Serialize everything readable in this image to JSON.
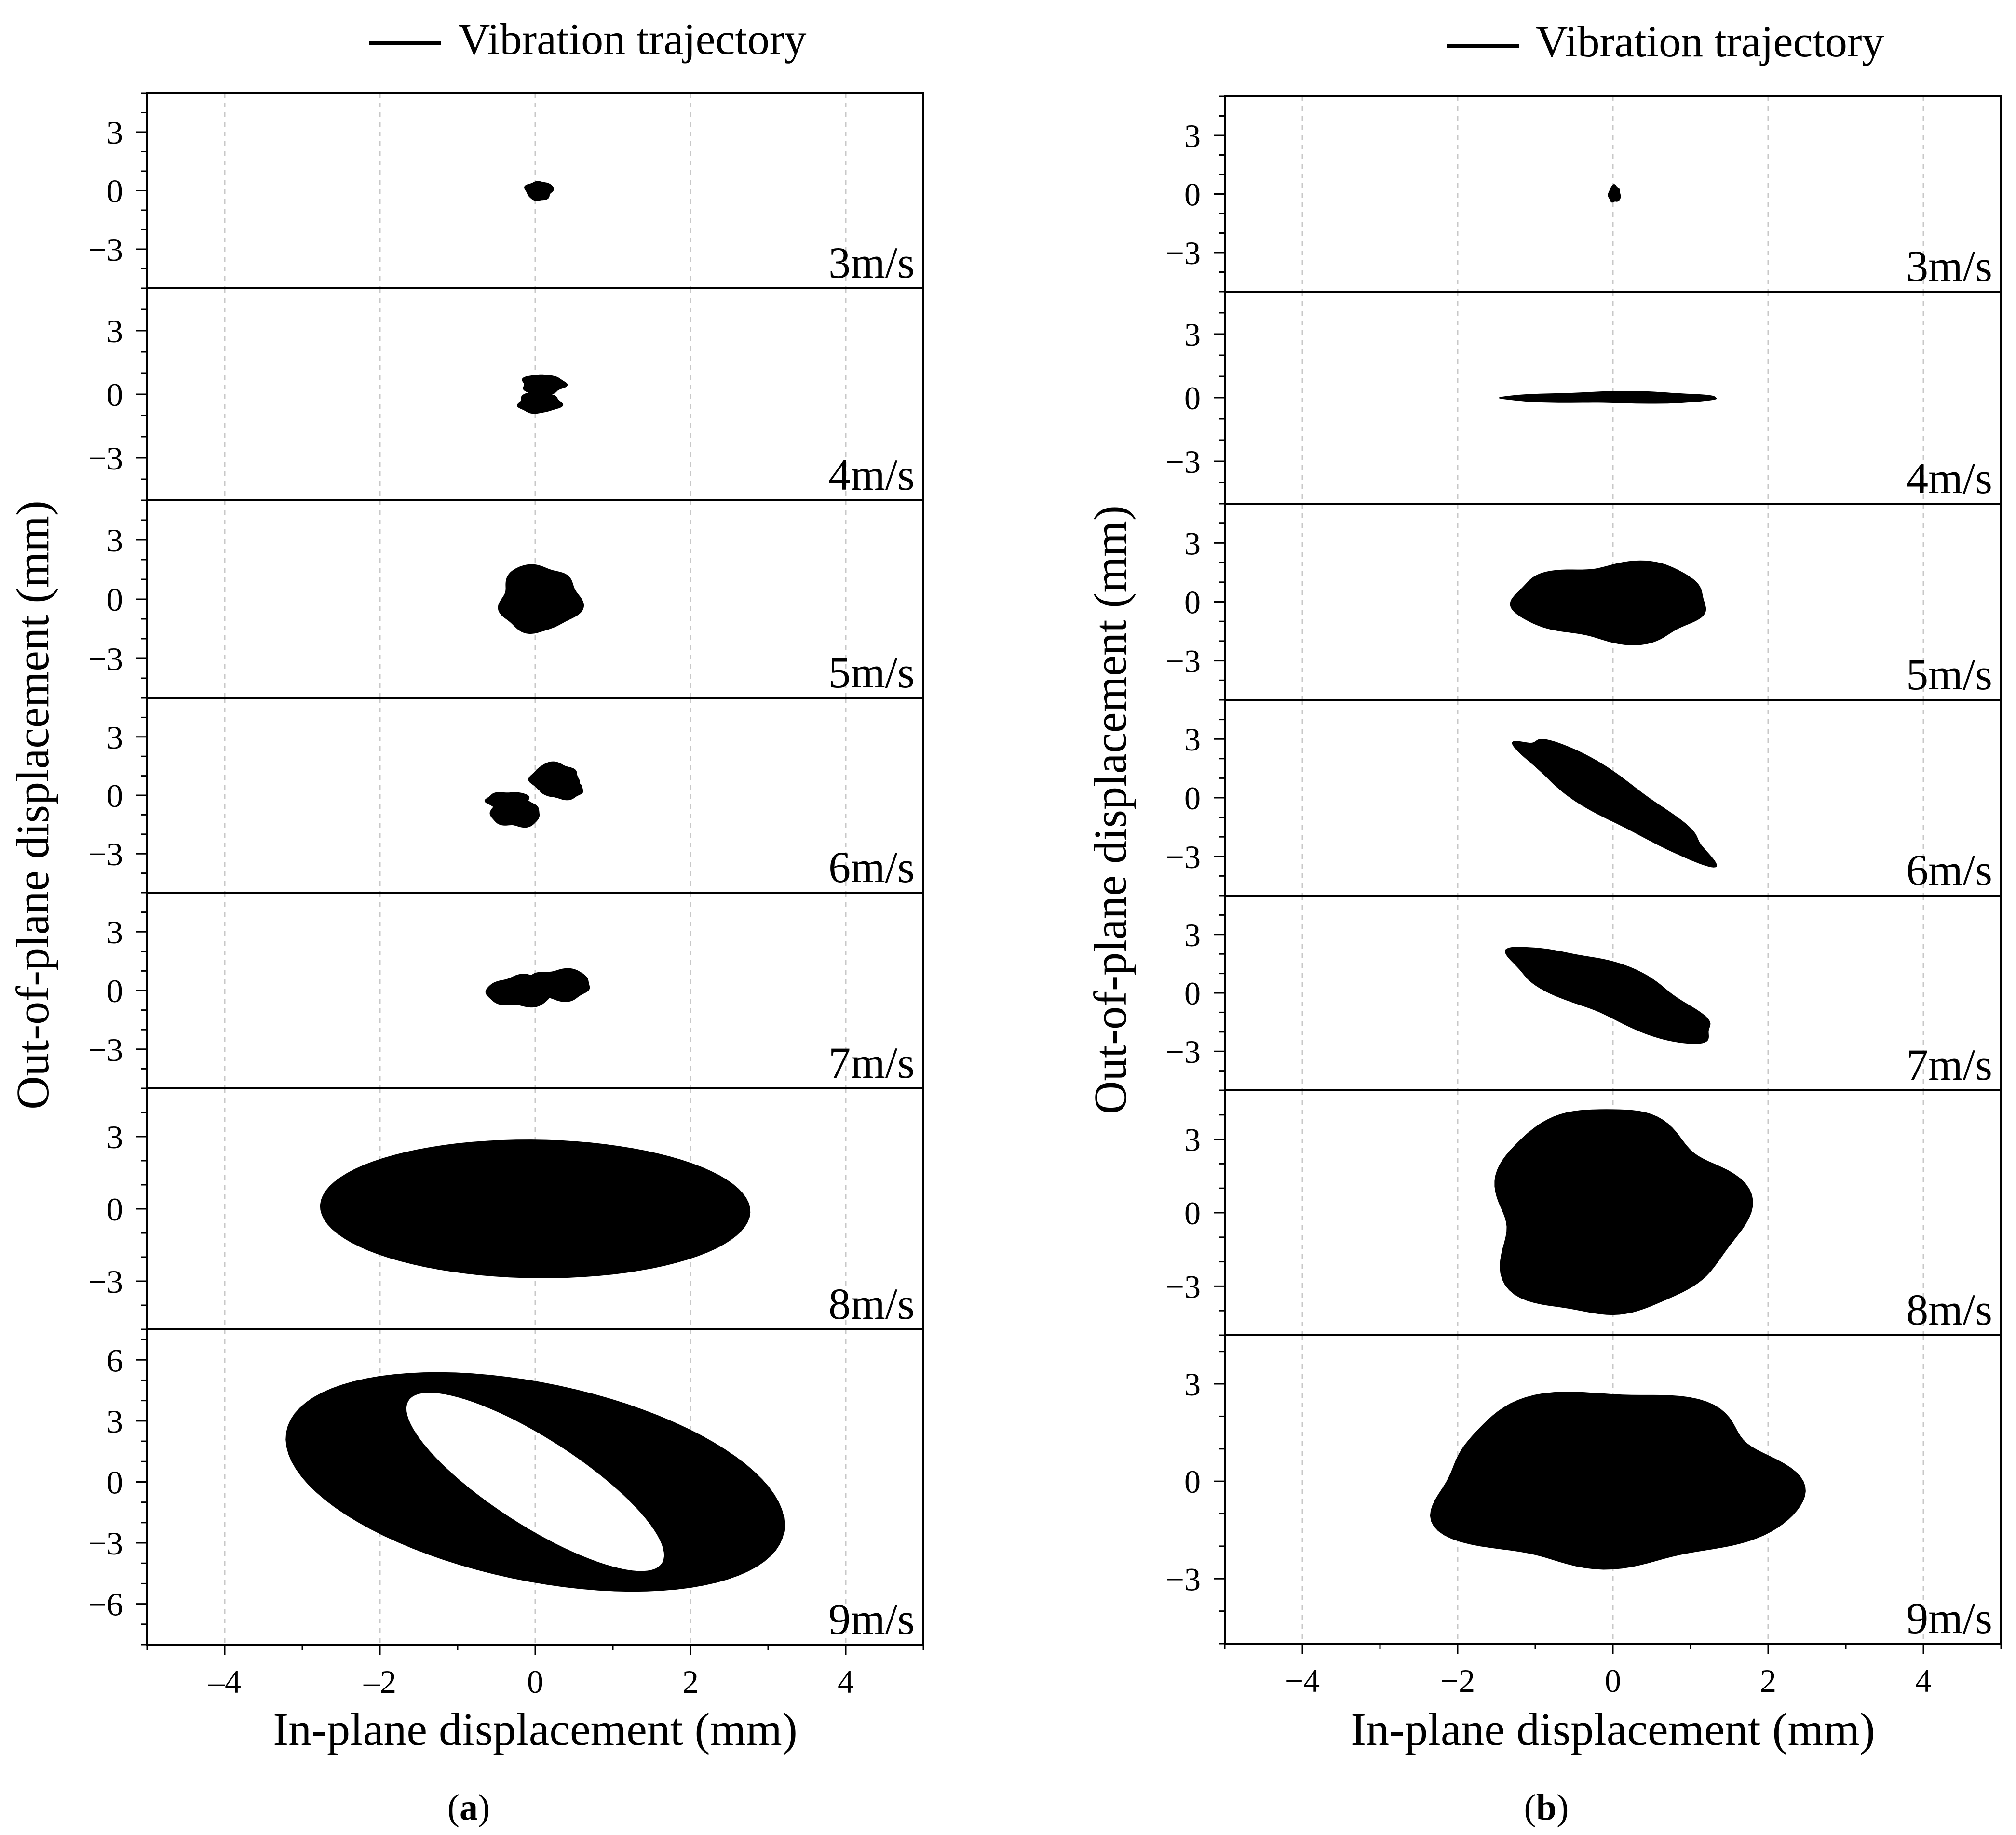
{
  "figure": {
    "legend_label": "Vibration trajectory",
    "xlabel": "In-plane displacement (mm)",
    "ylabel": "Out-of-plane displacement (mm)",
    "color_trajectory": "#000000",
    "color_grid": "#c8c8c8"
  },
  "chart_data": [
    {
      "type": "scatter",
      "panel_letter": "a",
      "title": "",
      "xlabel": "In-plane displacement (mm)",
      "ylabel": "Out-of-plane displacement (mm)",
      "xlim": [
        -5,
        5
      ],
      "xticks": [
        -4,
        -2,
        0,
        2,
        4
      ],
      "xtick_labels": [
        "–4",
        "–2",
        "0",
        "2",
        "4"
      ],
      "legend": [
        "Vibration trajectory"
      ],
      "grid": "vertical dashed at x ticks",
      "subplots": [
        {
          "label": "3m/s",
          "ylim": [
            -5,
            5
          ],
          "yticks": [
            -3,
            0,
            3
          ],
          "ytick_labels": [
            "−3",
            "0",
            "3"
          ],
          "shape": "blob",
          "trajectory": {
            "cx": 0.05,
            "cy": 0.0,
            "a": 0.18,
            "b": 0.5,
            "angle_deg": 0
          }
        },
        {
          "label": "4m/s",
          "ylim": [
            -5,
            5
          ],
          "yticks": [
            -3,
            0,
            3
          ],
          "ytick_labels": [
            "−3",
            "0",
            "3"
          ],
          "shape": "twin-lobe",
          "trajectory": {
            "lobes": [
              {
                "cx": 0.1,
                "cy": 0.45,
                "a": 0.28,
                "b": 0.5,
                "angle_deg": 0
              },
              {
                "cx": 0.05,
                "cy": -0.4,
                "a": 0.28,
                "b": 0.5,
                "angle_deg": 0
              }
            ]
          }
        },
        {
          "label": "5m/s",
          "ylim": [
            -5,
            5
          ],
          "yticks": [
            -3,
            0,
            3
          ],
          "ytick_labels": [
            "−3",
            "0",
            "3"
          ],
          "shape": "blob",
          "trajectory": {
            "cx": 0.05,
            "cy": 0.0,
            "a": 0.52,
            "b": 1.7,
            "angle_deg": 0
          }
        },
        {
          "label": "6m/s",
          "ylim": [
            -5,
            5
          ],
          "yticks": [
            -3,
            0,
            3
          ],
          "ytick_labels": [
            "−3",
            "0",
            "3"
          ],
          "shape": "twin-lobe",
          "trajectory": {
            "lobes": [
              {
                "cx": 0.25,
                "cy": 0.9,
                "a": 0.32,
                "b": 0.75,
                "angle_deg": 0
              },
              {
                "cx": -0.25,
                "cy": -0.9,
                "a": 0.32,
                "b": 0.75,
                "angle_deg": 0
              },
              {
                "cx": 0.35,
                "cy": 0.3,
                "a": 0.28,
                "b": 0.5,
                "angle_deg": 0
              },
              {
                "cx": -0.35,
                "cy": -0.3,
                "a": 0.28,
                "b": 0.5,
                "angle_deg": 0
              }
            ]
          }
        },
        {
          "label": "7m/s",
          "ylim": [
            -5,
            5
          ],
          "yticks": [
            -3,
            0,
            3
          ],
          "ytick_labels": [
            "−3",
            "0",
            "3"
          ],
          "shape": "twin-lobe",
          "trajectory": {
            "lobes": [
              {
                "cx": -0.2,
                "cy": -0.05,
                "a": 0.42,
                "b": 0.8,
                "angle_deg": 0
              },
              {
                "cx": 0.3,
                "cy": 0.3,
                "a": 0.42,
                "b": 0.8,
                "angle_deg": 0
              }
            ]
          }
        },
        {
          "label": "8m/s",
          "ylim": [
            -5,
            5
          ],
          "yticks": [
            -3,
            0,
            3
          ],
          "ytick_labels": [
            "−3",
            "0",
            "3"
          ],
          "shape": "ring",
          "trajectory": {
            "cx": 0.0,
            "cy": 0.0,
            "outer_a": 2.75,
            "outer_b": 2.9,
            "angle_deg": 22
          }
        },
        {
          "label": "9m/s",
          "ylim": [
            -8,
            7.5
          ],
          "yticks": [
            -6,
            -3,
            0,
            3,
            6
          ],
          "ytick_labels": [
            "−6",
            "−3",
            "0",
            "3",
            "6"
          ],
          "shape": "ring",
          "trajectory": {
            "cx": 0.0,
            "cy": 0.0,
            "outer_a": 2.85,
            "outer_b": 5.6,
            "inner_a": 0.9,
            "inner_b": 4.6,
            "angle_deg": 18
          }
        }
      ]
    },
    {
      "type": "scatter",
      "panel_letter": "b",
      "title": "",
      "xlabel": "In-plane displacement (mm)",
      "ylabel": "Out-of-plane displacement (mm)",
      "xlim": [
        -5,
        5
      ],
      "xticks": [
        -4,
        -2,
        0,
        2,
        4
      ],
      "xtick_labels": [
        "−4",
        "−2",
        "0",
        "2",
        "4"
      ],
      "legend": [
        "Vibration trajectory"
      ],
      "grid": "vertical dashed at x ticks",
      "subplots": [
        {
          "label": "3m/s",
          "ylim": [
            -5,
            5
          ],
          "yticks": [
            -3,
            0,
            3
          ],
          "ytick_labels": [
            "−3",
            "0",
            "3"
          ],
          "shape": "blob",
          "trajectory": {
            "cx": 0.02,
            "cy": 0.0,
            "a": 0.08,
            "b": 0.45,
            "angle_deg": 0
          }
        },
        {
          "label": "4m/s",
          "ylim": [
            -5,
            5
          ],
          "yticks": [
            -3,
            0,
            3
          ],
          "ytick_labels": [
            "−3",
            "0",
            "3"
          ],
          "shape": "blob",
          "trajectory": {
            "cx": 0.0,
            "cy": 0.0,
            "a": 1.4,
            "b": 0.28,
            "angle_deg": 0
          }
        },
        {
          "label": "5m/s",
          "ylim": [
            -5,
            5
          ],
          "yticks": [
            -3,
            0,
            3
          ],
          "ytick_labels": [
            "−3",
            "0",
            "3"
          ],
          "shape": "blob",
          "trajectory": {
            "cx": 0.0,
            "cy": 0.0,
            "a": 1.25,
            "b": 2.0,
            "angle_deg": 0
          }
        },
        {
          "label": "6m/s",
          "ylim": [
            -5,
            5
          ],
          "yticks": [
            -3,
            0,
            3
          ],
          "ytick_labels": [
            "−3",
            "0",
            "3"
          ],
          "shape": "blob",
          "trajectory": {
            "cx": 0.0,
            "cy": 0.0,
            "a": 0.48,
            "b": 3.4,
            "angle_deg": 20
          }
        },
        {
          "label": "7m/s",
          "ylim": [
            -5,
            5
          ],
          "yticks": [
            -3,
            0,
            3
          ],
          "ytick_labels": [
            "−3",
            "0",
            "3"
          ],
          "shape": "blob",
          "trajectory": {
            "cx": 0.0,
            "cy": 0.0,
            "a": 0.72,
            "b": 2.7,
            "angle_deg": 25
          }
        },
        {
          "label": "8m/s",
          "ylim": [
            -5,
            5
          ],
          "yticks": [
            -3,
            0,
            3
          ],
          "ytick_labels": [
            "−3",
            "0",
            "3"
          ],
          "shape": "blob",
          "trajectory": {
            "cx": 0.0,
            "cy": 0.0,
            "a": 1.6,
            "b": 4.2,
            "angle_deg": 0
          }
        },
        {
          "label": "9m/s",
          "ylim": [
            -5,
            4.5
          ],
          "yticks": [
            -3,
            0,
            3
          ],
          "ytick_labels": [
            "−3",
            "0",
            "3"
          ],
          "shape": "blob",
          "trajectory": {
            "cx": 0.0,
            "cy": 0.0,
            "a": 2.3,
            "b": 2.7,
            "angle_deg": 0
          }
        }
      ]
    }
  ]
}
